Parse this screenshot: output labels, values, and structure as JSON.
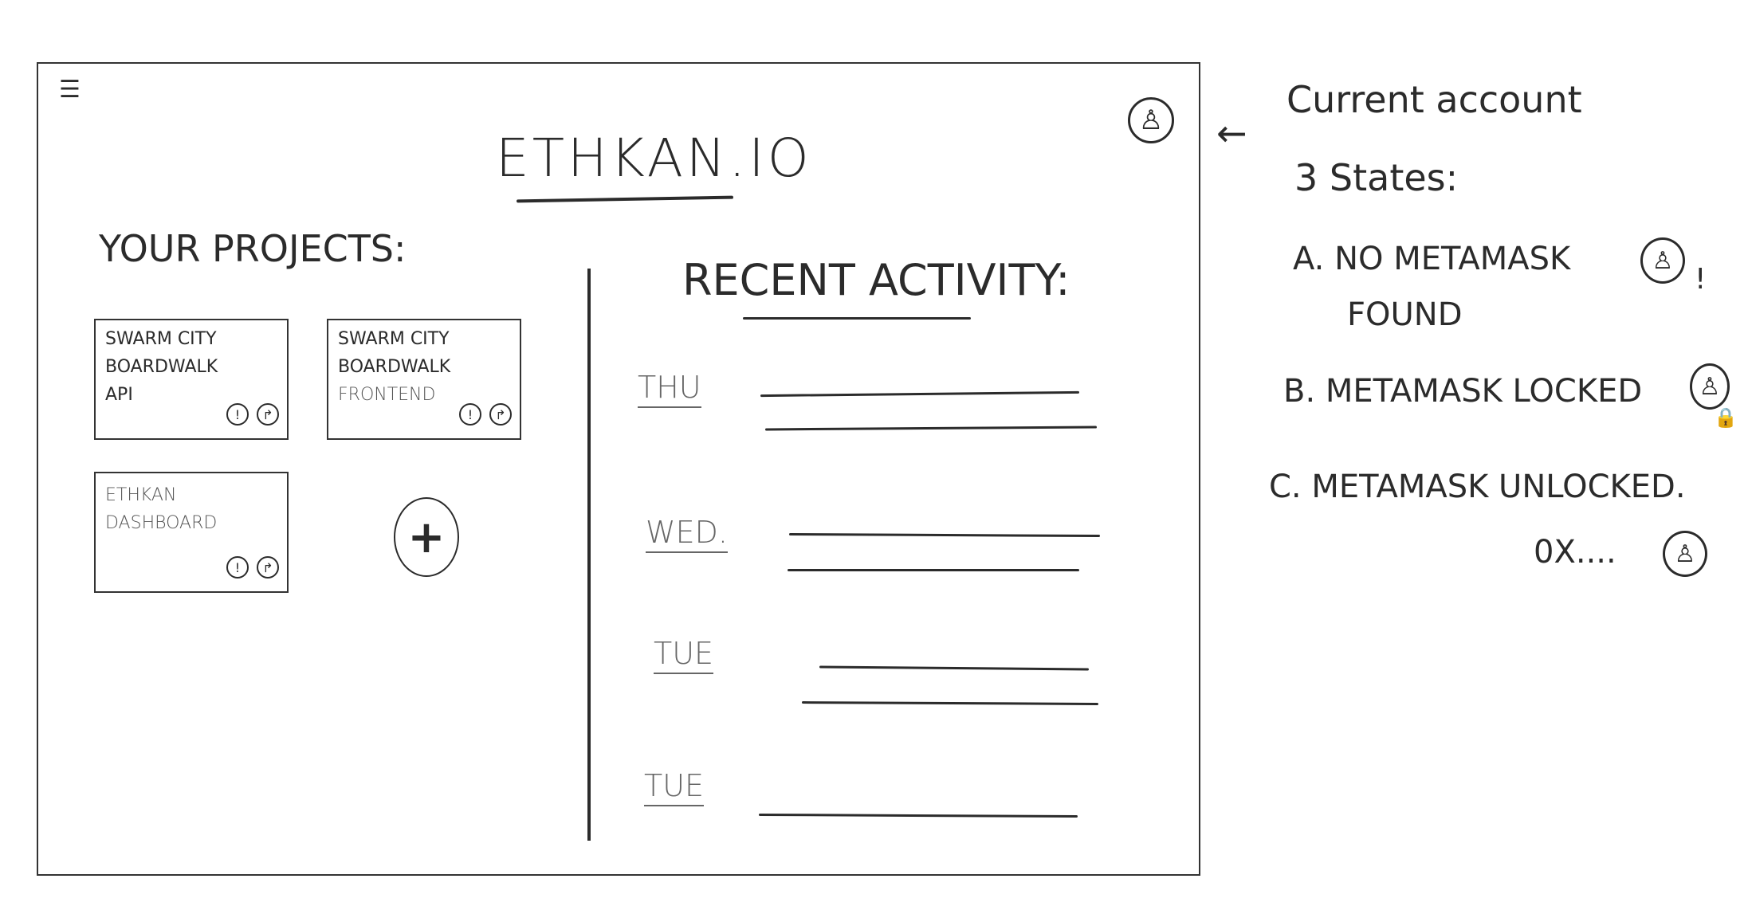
{
  "header": {
    "menu_icon": "☰",
    "title": "ETHKAN.IO",
    "account_icon": "♙"
  },
  "projects": {
    "heading": "YOUR PROJECTS:",
    "cards": [
      {
        "line1": "SWARM CITY",
        "line2": "BOARDWALK",
        "line3": "API"
      },
      {
        "line1": "SWARM CITY",
        "line2": "BOARDWALK",
        "line3": "FRONTEND"
      },
      {
        "line1": "ETHKAN",
        "line2": "DASHBOARD",
        "line3": ""
      }
    ],
    "info_icon": "!",
    "share_icon": "↱",
    "add_icon": "+"
  },
  "activity": {
    "heading": "RECENT ACTIVITY:",
    "days": [
      "THU",
      "WED.",
      "TUE",
      "TUE"
    ]
  },
  "notes": {
    "arrow": "←",
    "title": "Current account",
    "states_label": "3 States:",
    "a_label": "A. NO METAMASK",
    "a_label2": "FOUND",
    "a_badge": "!",
    "b_label": "B. METAMASK LOCKED",
    "b_badge": "🔒",
    "c_label": "C. METAMASK UNLOCKED.",
    "c_address": "0X....",
    "person_icon": "♙"
  }
}
